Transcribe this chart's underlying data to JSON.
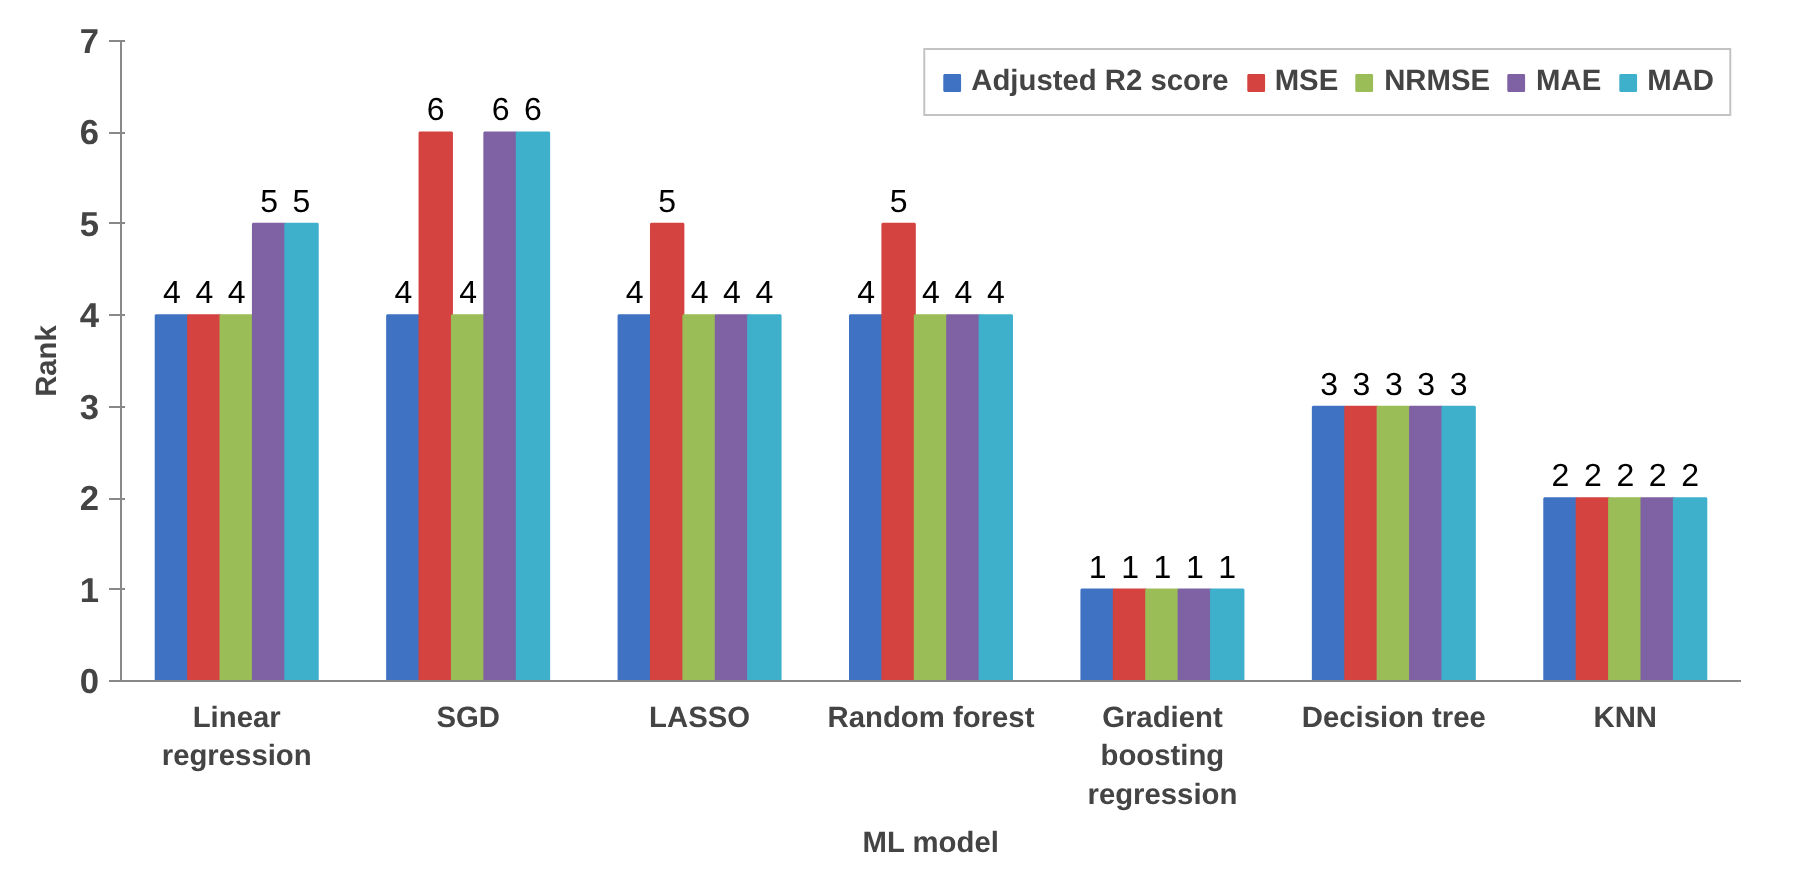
{
  "chart_data": {
    "type": "bar",
    "xlabel": "ML model",
    "ylabel": "Rank",
    "categories": [
      "Linear\nregression",
      "SGD",
      "LASSO",
      "Random forest",
      "Gradient\nboosting\nregression",
      "Decision tree",
      "KNN"
    ],
    "series": [
      {
        "name": "Adjusted R2 score",
        "color": "#3f72c2",
        "values": [
          4,
          4,
          4,
          4,
          1,
          3,
          2
        ]
      },
      {
        "name": "MSE",
        "color": "#d44340",
        "values": [
          4,
          6,
          5,
          5,
          1,
          3,
          2
        ]
      },
      {
        "name": "NRMSE",
        "color": "#9bbd57",
        "values": [
          4,
          4,
          4,
          4,
          1,
          3,
          2
        ]
      },
      {
        "name": "MAE",
        "color": "#7f62a3",
        "values": [
          5,
          6,
          4,
          4,
          1,
          3,
          2
        ]
      },
      {
        "name": "MAD",
        "color": "#3fb0cc",
        "values": [
          5,
          6,
          4,
          4,
          1,
          3,
          2
        ]
      }
    ],
    "ylim": [
      0,
      7
    ],
    "yticks": [
      0,
      1,
      2,
      3,
      4,
      5,
      6,
      7
    ],
    "grid": false,
    "legend": "top right",
    "data_labels": true
  }
}
